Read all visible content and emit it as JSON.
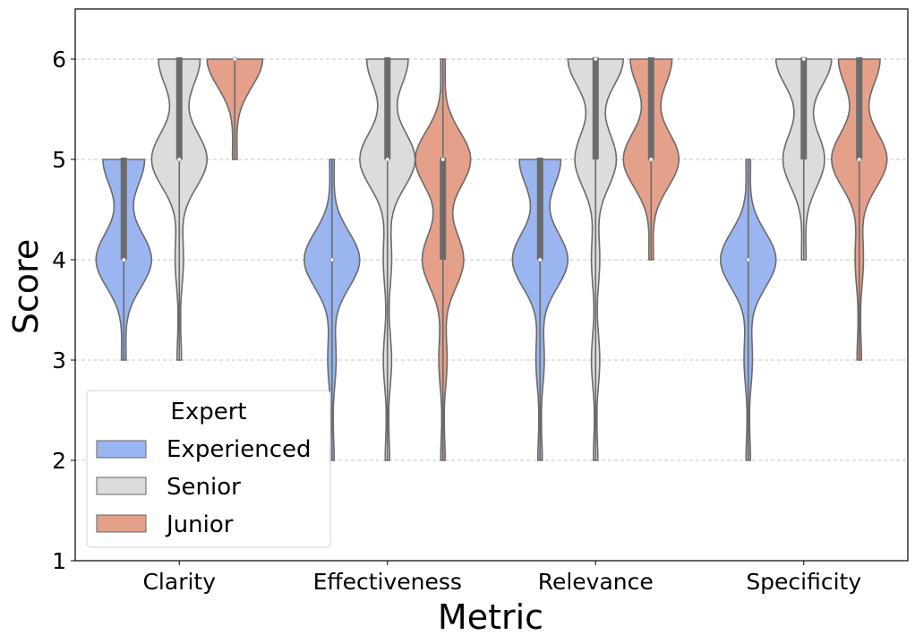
{
  "chart_data": {
    "type": "violin",
    "title": "",
    "xlabel": "Metric",
    "ylabel": "Score",
    "ylim": [
      1,
      6.5
    ],
    "yticks": [
      "1",
      "2",
      "3",
      "4",
      "5",
      "6"
    ],
    "grid": "y dashed",
    "categories": [
      "Clarity",
      "Effectiveness",
      "Relevance",
      "Specificity"
    ],
    "legend": {
      "title": "Expert",
      "position": "lower-left"
    },
    "series": [
      {
        "name": "Experienced",
        "color": "#9ab5f0",
        "stats": [
          {
            "min": 3,
            "q1": 4,
            "median": 4,
            "q3": 5,
            "max": 5
          },
          {
            "min": 2,
            "q1": 4,
            "median": 4,
            "q3": 4,
            "max": 5
          },
          {
            "min": 2,
            "q1": 4,
            "median": 4,
            "q3": 5,
            "max": 5
          },
          {
            "min": 2,
            "q1": 4,
            "median": 4,
            "q3": 4,
            "max": 5
          }
        ]
      },
      {
        "name": "Senior",
        "color": "#dcdcdc",
        "stats": [
          {
            "min": 3,
            "q1": 5,
            "median": 5,
            "q3": 6,
            "max": 6
          },
          {
            "min": 2,
            "q1": 5,
            "median": 5,
            "q3": 6,
            "max": 6
          },
          {
            "min": 2,
            "q1": 5,
            "median": 6,
            "q3": 6,
            "max": 6
          },
          {
            "min": 4,
            "q1": 5,
            "median": 6,
            "q3": 6,
            "max": 6
          }
        ]
      },
      {
        "name": "Junior",
        "color": "#e5a08a",
        "stats": [
          {
            "min": 5,
            "q1": 6,
            "median": 6,
            "q3": 6,
            "max": 6
          },
          {
            "min": 2,
            "q1": 4,
            "median": 5,
            "q3": 5,
            "max": 6
          },
          {
            "min": 4,
            "q1": 5,
            "median": 5,
            "q3": 6,
            "max": 6
          },
          {
            "min": 3,
            "q1": 5,
            "median": 5,
            "q3": 6,
            "max": 6
          }
        ]
      }
    ]
  }
}
